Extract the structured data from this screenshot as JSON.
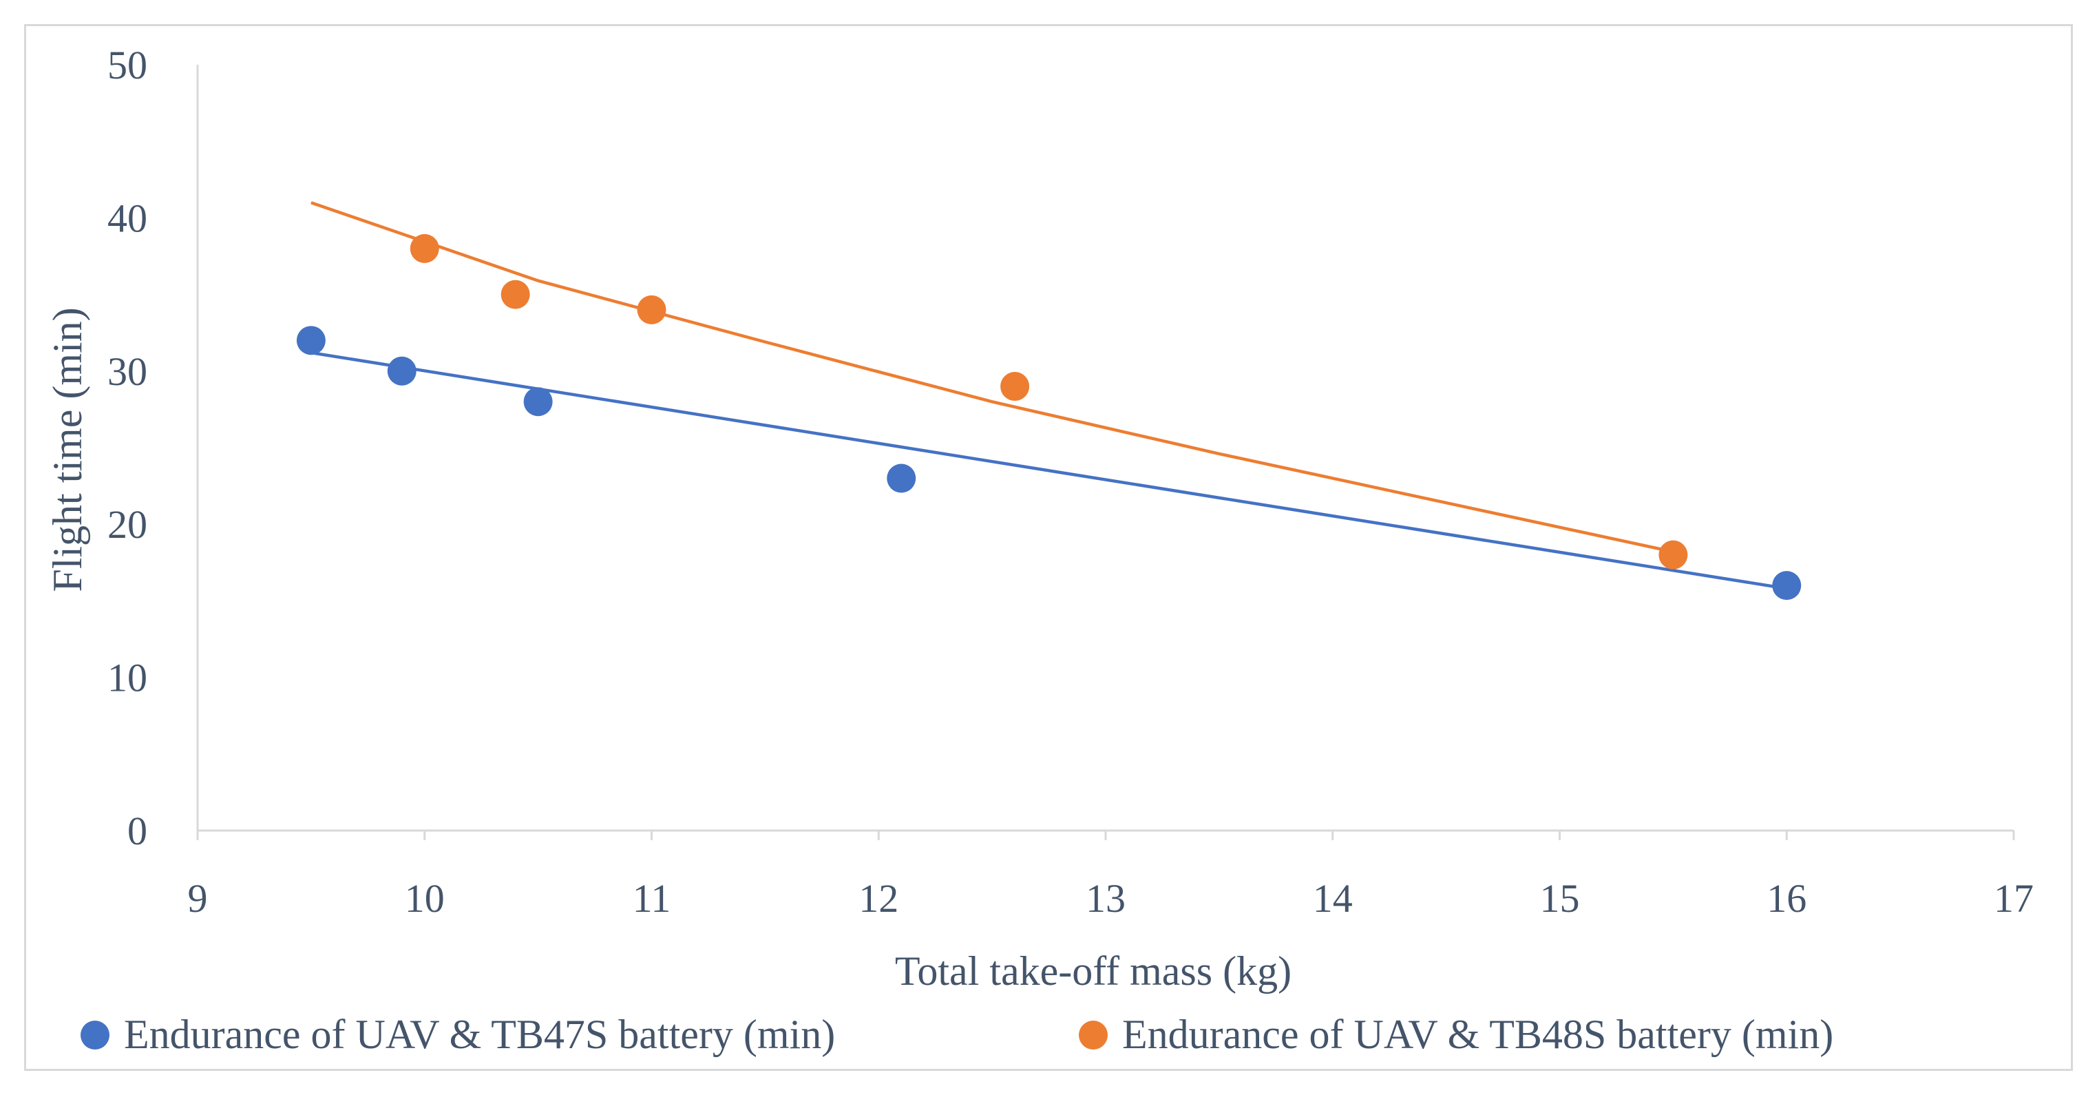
{
  "chart_data": {
    "type": "scatter",
    "title": "",
    "xlabel": "Total take-off mass (kg)",
    "ylabel": "Flight time (min)",
    "xlim": [
      9,
      17
    ],
    "ylim": [
      0,
      50
    ],
    "xticks": [
      9,
      10,
      11,
      12,
      13,
      14,
      15,
      16,
      17
    ],
    "yticks": [
      0,
      10,
      20,
      30,
      40,
      50
    ],
    "grid": false,
    "legend_position": "bottom",
    "series": [
      {
        "name": "Endurance of UAV & TB47S battery (min)",
        "color": "#4472c4",
        "points": [
          [
            9.5,
            32
          ],
          [
            9.9,
            30
          ],
          [
            10.5,
            28
          ],
          [
            12.1,
            23
          ],
          [
            16.0,
            16
          ]
        ],
        "trendline": [
          [
            9.5,
            31.2
          ],
          [
            16.0,
            15.8
          ]
        ]
      },
      {
        "name": "Endurance of UAV &  TB48S battery (min)",
        "color": "#ed7d31",
        "points": [
          [
            10.0,
            38
          ],
          [
            10.4,
            35
          ],
          [
            11.0,
            34
          ],
          [
            12.6,
            29
          ],
          [
            15.5,
            18
          ]
        ],
        "trendline": [
          [
            9.5,
            41.0
          ],
          [
            10.5,
            35.9
          ],
          [
            11.5,
            31.9
          ],
          [
            12.5,
            28.0
          ],
          [
            13.5,
            24.6
          ],
          [
            14.5,
            21.4
          ],
          [
            15.5,
            18.2
          ]
        ]
      }
    ]
  }
}
